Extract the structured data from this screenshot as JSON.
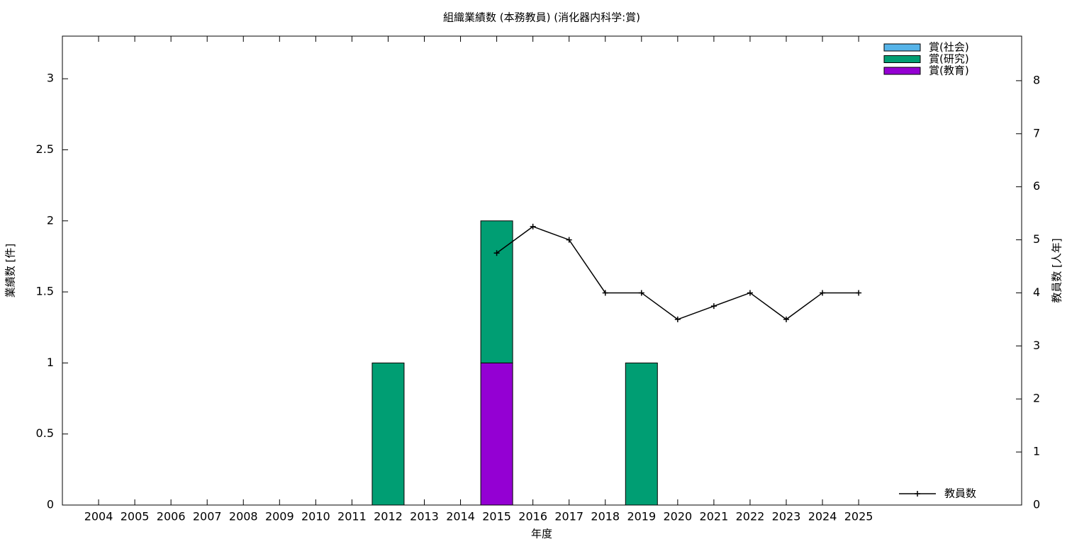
{
  "chart_data": {
    "type": "bar",
    "stacked": true,
    "title": "組織業績数 (本務教員) (消化器内科学:賞)",
    "x_label": "年度",
    "y_label": "業績数 [件]",
    "y2_label": "教員数 [人年]",
    "categories": [
      "2004",
      "2005",
      "2006",
      "2007",
      "2008",
      "2009",
      "2010",
      "2011",
      "2012",
      "2013",
      "2014",
      "2015",
      "2016",
      "2017",
      "2018",
      "2019",
      "2020",
      "2021",
      "2022",
      "2023",
      "2024",
      "2025"
    ],
    "series": [
      {
        "name": "賞(社会)",
        "color": "#56b4e9",
        "values": [
          0,
          0,
          0,
          0,
          0,
          0,
          0,
          0,
          0,
          0,
          0,
          0,
          0,
          0,
          0,
          0,
          0,
          0,
          0,
          0,
          0,
          0
        ]
      },
      {
        "name": "賞(研究)",
        "color": "#009e73",
        "values": [
          0,
          0,
          0,
          0,
          0,
          0,
          0,
          0,
          1,
          0,
          0,
          1,
          0,
          0,
          0,
          1,
          0,
          0,
          0,
          0,
          0,
          0
        ]
      },
      {
        "name": "賞(教育)",
        "color": "#9400d3",
        "values": [
          0,
          0,
          0,
          0,
          0,
          0,
          0,
          0,
          0,
          0,
          0,
          1,
          0,
          0,
          0,
          0,
          0,
          0,
          0,
          0,
          0,
          0
        ]
      },
      {
        "name": "教員数",
        "type": "line",
        "axis": "y2",
        "color": "#000000",
        "values": [
          null,
          null,
          null,
          null,
          null,
          null,
          null,
          null,
          null,
          null,
          null,
          4.75,
          5.25,
          5.0,
          4,
          4,
          3.5,
          3.75,
          4,
          3.5,
          4,
          4
        ]
      }
    ],
    "ylim": [
      0,
      3.3
    ],
    "yticks": [
      0,
      0.5,
      1,
      1.5,
      2,
      2.5,
      3
    ],
    "y2lim": [
      0,
      8.84
    ],
    "y2ticks": [
      0,
      1,
      2,
      3,
      4,
      5,
      6,
      7,
      8
    ],
    "legend": "top-right",
    "line_legend": "bottom-right"
  }
}
